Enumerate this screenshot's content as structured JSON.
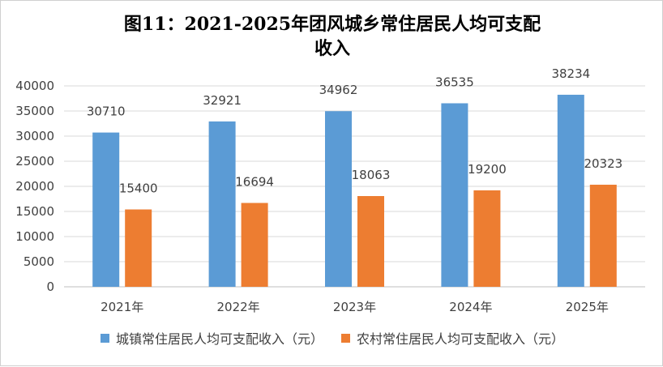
{
  "chart_data": {
    "type": "bar",
    "title_line1": "图11：2021-2025年团风城乡常住居民人均可支配",
    "title_line2": "收入",
    "categories": [
      "2021年",
      "2022年",
      "2023年",
      "2024年",
      "2025年"
    ],
    "series": [
      {
        "name": "城镇常住居民人均可支配收入（元）",
        "color": "#5B9BD5",
        "values": [
          30710,
          32921,
          34962,
          36535,
          38234
        ]
      },
      {
        "name": "农村常住居民人均可支配收入（元）",
        "color": "#ED7D31",
        "values": [
          15400,
          16694,
          18063,
          19200,
          20323
        ]
      }
    ],
    "ylim": [
      0,
      40000
    ],
    "yticks": [
      0,
      5000,
      10000,
      15000,
      20000,
      25000,
      30000,
      35000,
      40000
    ],
    "grid": true,
    "legend_position": "bottom"
  }
}
